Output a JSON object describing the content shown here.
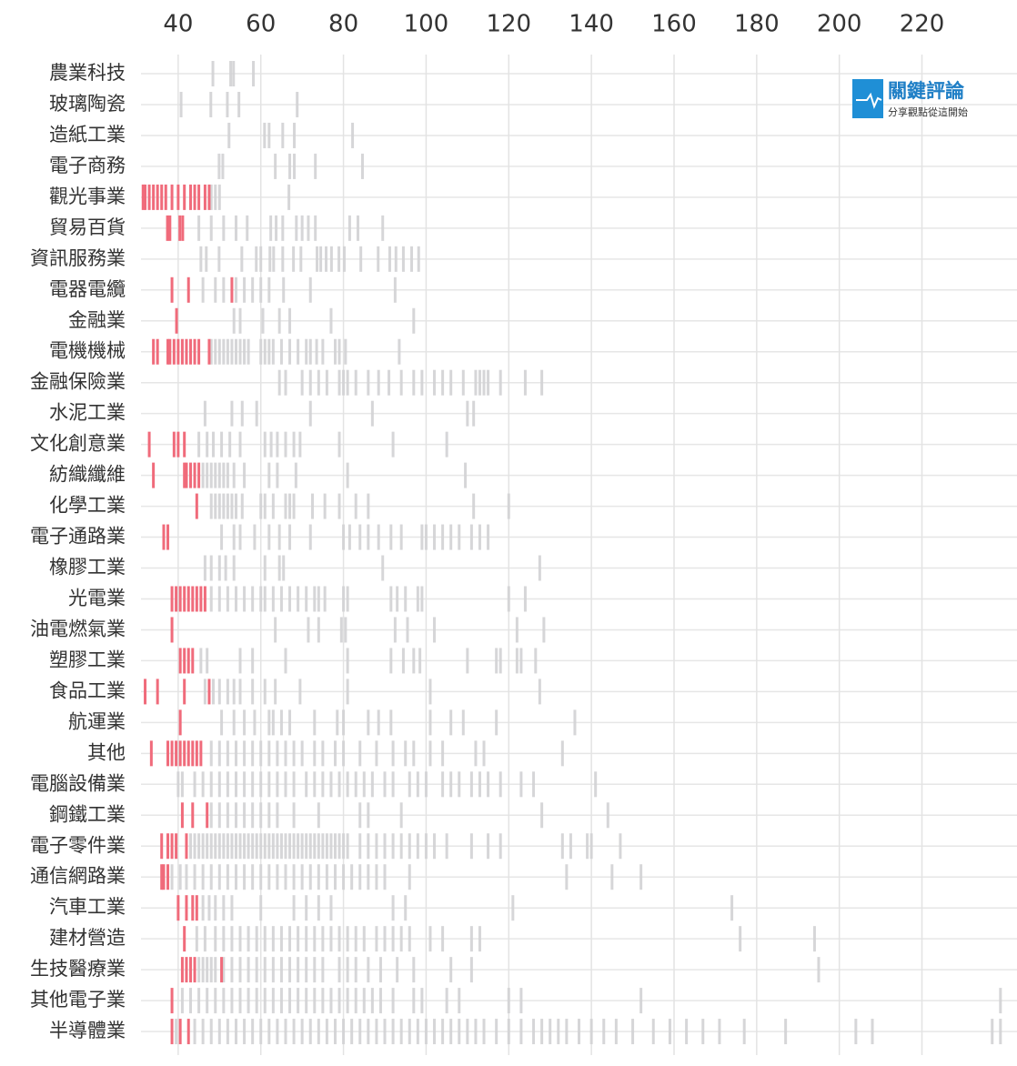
{
  "logo": {
    "title": "關鍵評論",
    "subtitle": "分享觀點從這開始"
  },
  "chart_data": {
    "type": "strip",
    "xlim": [
      31,
      243
    ],
    "xticks": [
      40,
      60,
      80,
      100,
      120,
      140,
      160,
      180,
      200,
      220
    ],
    "grid": true,
    "color": "#d2d2d4",
    "highlight_color": "#f06b7b",
    "highlight_label_index": 4,
    "categories": [
      "農業科技",
      "玻璃陶瓷",
      "造紙工業",
      "電子商務",
      "觀光事業",
      "貿易百貨",
      "資訊服務業",
      "電器電纜",
      "金融業",
      "電機機械",
      "金融保險業",
      "水泥工業",
      "文化創意業",
      "紡織纖維",
      "化學工業",
      "電子通路業",
      "橡膠工業",
      "光電業",
      "油電燃氣業",
      "塑膠工業",
      "食品工業",
      "航運業",
      "其他",
      "電腦設備業",
      "鋼鐵工業",
      "電子零件業",
      "通信網路業",
      "汽車工業",
      "建材營造",
      "生技醫療業",
      "其他電子業",
      "半導體業"
    ],
    "values": [
      [
        48.4,
        52.7,
        53.4,
        58.2
      ],
      [
        40.7,
        47.9,
        51.9,
        54.7,
        68.8
      ],
      [
        52.3,
        60.9,
        62,
        65.3,
        68.1,
        82.2
      ],
      [
        49.9,
        50.8,
        63.5,
        67,
        68.1,
        73.2,
        84.6
      ],
      [
        48,
        49,
        50,
        66.8
      ],
      [
        45,
        48,
        51,
        54,
        56.7,
        62.4,
        63.7,
        65.3,
        68.6,
        70,
        71.5,
        73.2,
        81.5,
        83.5,
        89.5
      ],
      [
        45.5,
        46.8,
        49.9,
        55.4,
        58.9,
        60,
        62.2,
        63.1,
        65.3,
        67.9,
        69.7,
        73.6,
        74.5,
        75.8,
        77.1,
        78.9,
        80.2,
        84.2,
        88.4,
        91.2,
        92.7,
        94.5,
        96.5,
        98.2
      ],
      [
        46,
        49,
        51,
        54,
        56,
        58,
        60,
        62,
        65.5,
        72,
        92.5
      ],
      [
        53.5,
        55,
        60.5,
        64.5,
        67,
        77,
        97
      ],
      [
        48,
        49,
        50,
        51,
        52,
        53,
        54,
        55,
        56,
        57,
        60,
        61,
        62,
        63,
        65,
        67,
        69,
        71,
        72,
        73.5,
        75,
        78,
        79,
        80.5,
        93.5
      ],
      [
        64.5,
        66,
        70,
        72,
        74,
        76,
        79,
        80,
        81,
        83,
        86,
        88.5,
        91,
        94,
        97,
        99,
        102,
        104,
        106,
        109,
        112,
        113,
        114,
        115,
        118,
        124,
        128
      ],
      [
        46.5,
        53,
        55.5,
        59,
        72,
        87,
        110,
        111.5
      ],
      [
        45,
        47,
        48.5,
        50.5,
        52.5,
        55,
        61,
        62.5,
        64,
        66,
        68,
        69.5,
        79,
        92,
        105
      ],
      [
        46,
        47,
        48,
        49,
        50,
        51,
        52,
        53.5,
        56,
        62,
        64,
        68.5,
        81,
        109.5
      ],
      [
        48,
        49,
        50,
        51,
        52,
        53,
        54,
        55.5,
        60,
        61,
        63,
        66,
        67,
        68,
        72.5,
        75.5,
        79,
        83,
        86,
        111.5,
        120
      ],
      [
        50.5,
        53.5,
        55,
        58.5,
        62,
        64.5,
        67,
        72,
        80,
        81.5,
        84,
        86,
        88.5,
        91.5,
        94,
        99,
        100,
        102,
        104,
        106,
        108,
        111,
        113,
        115
      ],
      [
        46.5,
        48,
        50,
        51.5,
        53.5,
        61,
        64.5,
        65.5,
        89.5,
        127.5
      ],
      [
        48,
        50,
        52,
        54,
        56,
        58,
        60,
        61,
        63,
        65,
        67,
        69,
        71,
        73,
        74,
        75.5,
        80,
        81,
        91.5,
        93,
        95,
        98,
        99,
        120,
        124
      ],
      [
        63.5,
        71.5,
        74,
        79.5,
        80.5,
        92.5,
        95.5,
        102,
        122,
        128.5
      ],
      [
        45.5,
        47,
        55,
        58,
        66,
        81,
        91.5,
        94.5,
        97,
        98.5,
        110,
        117,
        118,
        122,
        123,
        126.5
      ],
      [
        46.5,
        48.5,
        50,
        52,
        53.5,
        55,
        58,
        61,
        63.5,
        69.5,
        81,
        101,
        127.5
      ],
      [
        50.5,
        53.5,
        56,
        58.5,
        62,
        63,
        65,
        67,
        73,
        78.5,
        80,
        86,
        88.5,
        91.5,
        101,
        106,
        109,
        117,
        136
      ],
      [
        48,
        50,
        52,
        54,
        56,
        58,
        60,
        62,
        64,
        66,
        68,
        70,
        73,
        75,
        78,
        80,
        84,
        88,
        92,
        95,
        97,
        101,
        104,
        112,
        114,
        133
      ],
      [
        40,
        41,
        44,
        46,
        48,
        50,
        52,
        54,
        56,
        58,
        60,
        62,
        64,
        66,
        68,
        71,
        73,
        75,
        77,
        79,
        81,
        83,
        85,
        87,
        90,
        92,
        96,
        98,
        100,
        104,
        106,
        108,
        111,
        113,
        115,
        118,
        123,
        126,
        141
      ],
      [
        48,
        50,
        52,
        54,
        56,
        58,
        60,
        62,
        64,
        68,
        74,
        84,
        86,
        94,
        128,
        144
      ],
      [
        43,
        44,
        45,
        46,
        47,
        48,
        49,
        50,
        51,
        52,
        53,
        54,
        55,
        56,
        57,
        58,
        59,
        60,
        61,
        62,
        63,
        64,
        65,
        66,
        67,
        68,
        69,
        70,
        71,
        72,
        73,
        74,
        75,
        76,
        77,
        78,
        79,
        80,
        81,
        84,
        86,
        88,
        90,
        92,
        94,
        96,
        98,
        100,
        102,
        105,
        111,
        115,
        118,
        133,
        135,
        139,
        140,
        147
      ],
      [
        38.5,
        40.5,
        42,
        44,
        46,
        48,
        50,
        52,
        54,
        56,
        58,
        60,
        62,
        64,
        66,
        68,
        70,
        72,
        74,
        76,
        78,
        80,
        82,
        84,
        86,
        88,
        90,
        96,
        134,
        145,
        152
      ],
      [
        46,
        47.5,
        49,
        51,
        53,
        60,
        68,
        71,
        74,
        77,
        92,
        95,
        121,
        174
      ],
      [
        44.5,
        46.5,
        49,
        51,
        53,
        55,
        57,
        59,
        61,
        63,
        65,
        67,
        69,
        71,
        73,
        75,
        77,
        79,
        81,
        83,
        85,
        88,
        90,
        92,
        94,
        96,
        101,
        104,
        111,
        113,
        176,
        194
      ],
      [
        45,
        46,
        47,
        48,
        49,
        51,
        53,
        55,
        57,
        59,
        61,
        63,
        65,
        67,
        69,
        71,
        73,
        75,
        79,
        81,
        83,
        86,
        89,
        93,
        97,
        106,
        111,
        195
      ],
      [
        41,
        43,
        45,
        47,
        49,
        51,
        53,
        55,
        57,
        59,
        61,
        63,
        65,
        67,
        69,
        71,
        73,
        75,
        77,
        79,
        81,
        83,
        85,
        87,
        89,
        92,
        97,
        99,
        105,
        108,
        120,
        123,
        152,
        239
      ],
      [
        39.5,
        44,
        46,
        48,
        50,
        52,
        54,
        56,
        58,
        60,
        62,
        64,
        66,
        68,
        70,
        72,
        74,
        76,
        78,
        80,
        82,
        84,
        86,
        88,
        90,
        92,
        94,
        96,
        98,
        100,
        102,
        104,
        106,
        108,
        110,
        112,
        114,
        117,
        120,
        123,
        126,
        128,
        130,
        132,
        134,
        137,
        140,
        143,
        146,
        150,
        155,
        159,
        163,
        167,
        171,
        177,
        187,
        204,
        208,
        237,
        239
      ]
    ],
    "highlight": [
      [],
      [],
      [],
      [],
      [
        31.5,
        32,
        33,
        34,
        35,
        36,
        37,
        38.5,
        40,
        41.5,
        43,
        44,
        45,
        46.5,
        47.5
      ],
      [
        37.4,
        38,
        40.4,
        41.1
      ],
      [],
      [
        38.5,
        42.5,
        53
      ],
      [
        39.6
      ],
      [
        34,
        35,
        37.5,
        38,
        39,
        40,
        41,
        42,
        43,
        44,
        45,
        47.5
      ],
      [],
      [],
      [
        33,
        39,
        40,
        41.5
      ],
      [
        34,
        41.5,
        42,
        43,
        44,
        45
      ],
      [
        44.5
      ],
      [
        36.5,
        37.5
      ],
      [],
      [
        38.5,
        39.5,
        40.5,
        41.5,
        42.5,
        43.5,
        44.5,
        45.5,
        46.5
      ],
      [
        38.5
      ],
      [
        40.5,
        41.5,
        42.5,
        43.5
      ],
      [
        32,
        35,
        41.5,
        47.5
      ],
      [
        40.5
      ],
      [
        33.5,
        37.5,
        38.5,
        39.5,
        40.5,
        41.5,
        42.5,
        43.5,
        44.5,
        45.5
      ],
      [],
      [
        41,
        43.5,
        47
      ],
      [
        36,
        37.5,
        38.5,
        39.5,
        42
      ],
      [
        36,
        36.5,
        37.5
      ],
      [
        40,
        42,
        43.5,
        44.5
      ],
      [
        41.5
      ],
      [
        41,
        42,
        43,
        44,
        50.5
      ],
      [
        38.5
      ],
      [
        38.5,
        40.5,
        42.5
      ]
    ]
  }
}
